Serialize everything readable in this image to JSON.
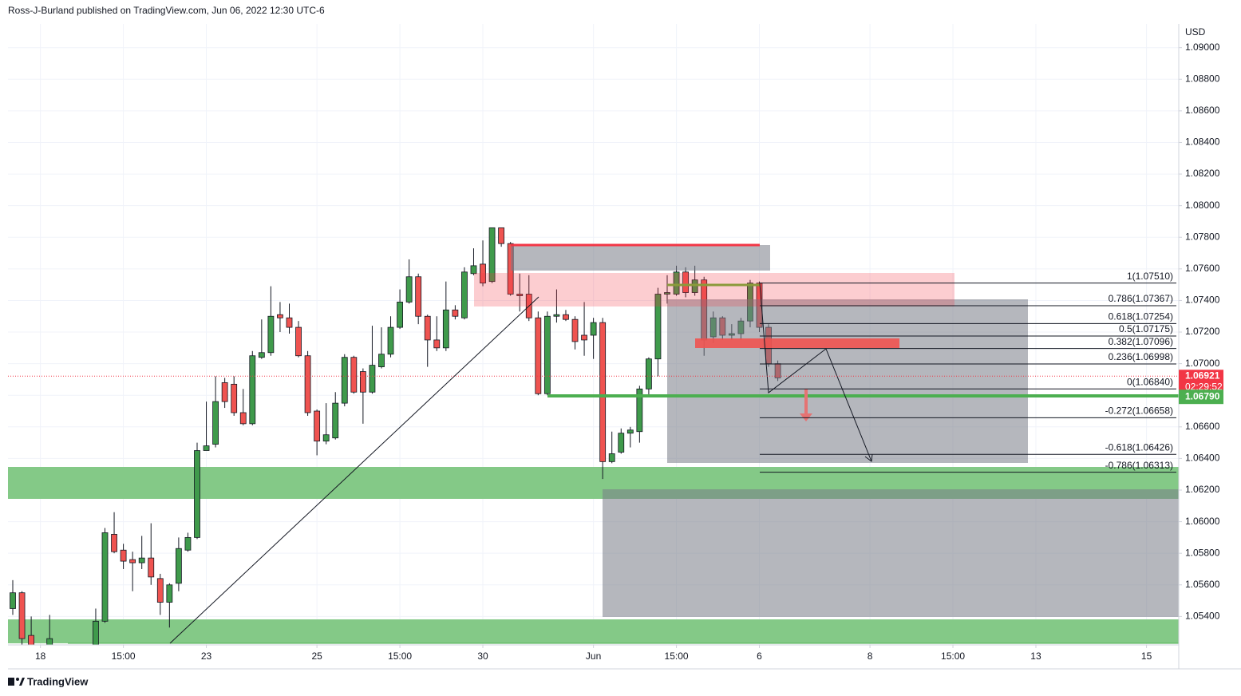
{
  "header": {
    "title": "Ross-J-Burland published on TradingView.com, Jun 06, 2022 12:30 UTC-6"
  },
  "footer": {
    "brand": "TradingView"
  },
  "chart_data": {
    "type": "candlestick",
    "currency": "USD",
    "up_color": "#3f9a4b",
    "down_color": "#ef5350",
    "grid": true,
    "ylim": [
      1.0522,
      1.0915
    ],
    "yticks": [
      {
        "value": 1.09,
        "label": "1.09000"
      },
      {
        "value": 1.088,
        "label": "1.08800"
      },
      {
        "value": 1.086,
        "label": "1.08600"
      },
      {
        "value": 1.084,
        "label": "1.08400"
      },
      {
        "value": 1.082,
        "label": "1.08200"
      },
      {
        "value": 1.08,
        "label": "1.08000"
      },
      {
        "value": 1.078,
        "label": "1.07800"
      },
      {
        "value": 1.076,
        "label": "1.07600"
      },
      {
        "value": 1.074,
        "label": "1.07400"
      },
      {
        "value": 1.072,
        "label": "1.07200"
      },
      {
        "value": 1.07,
        "label": "1.07000"
      },
      {
        "value": 1.068,
        "label": "1.06800"
      },
      {
        "value": 1.066,
        "label": "1.06600"
      },
      {
        "value": 1.064,
        "label": "1.06400"
      },
      {
        "value": 1.062,
        "label": "1.06200"
      },
      {
        "value": 1.06,
        "label": "1.06000"
      },
      {
        "value": 1.058,
        "label": "1.05800"
      },
      {
        "value": 1.056,
        "label": "1.05600"
      },
      {
        "value": 1.054,
        "label": "1.05400"
      }
    ],
    "xlim": [
      -0.52,
      126.5
    ],
    "xticks": [
      {
        "value": 3,
        "label": "18"
      },
      {
        "value": 12,
        "label": "15:00"
      },
      {
        "value": 21,
        "label": "23"
      },
      {
        "value": 33,
        "label": "25"
      },
      {
        "value": 42,
        "label": "15:00"
      },
      {
        "value": 51,
        "label": "30"
      },
      {
        "value": 63,
        "label": "Jun"
      },
      {
        "value": 72,
        "label": "15:00"
      },
      {
        "value": 81,
        "label": "6"
      },
      {
        "value": 93,
        "label": "8"
      },
      {
        "value": 102,
        "label": "15:00"
      },
      {
        "value": 111,
        "label": "13"
      },
      {
        "value": 123,
        "label": "15"
      }
    ],
    "candles": {
      "x": [
        0,
        1,
        2,
        4,
        9,
        10,
        11,
        12,
        13,
        14,
        15,
        16,
        17,
        18,
        19,
        20,
        21,
        22,
        23,
        24,
        25,
        26,
        27,
        28,
        29,
        30,
        31,
        32,
        33,
        34,
        35,
        36,
        37,
        38,
        39,
        40,
        41,
        42,
        43,
        44,
        45,
        46,
        47,
        48,
        49,
        50,
        51,
        52,
        53,
        54,
        55,
        56,
        57,
        58,
        59,
        60,
        61,
        62,
        63,
        64,
        65,
        66,
        67,
        68,
        69,
        70,
        71,
        72,
        73,
        74,
        75,
        76,
        77,
        78,
        79,
        80,
        81,
        82,
        83
      ],
      "open": [
        1.0545,
        1.0555,
        1.0528,
        1.0522,
        1.0522,
        1.0537,
        1.0592,
        1.0582,
        1.0576,
        1.0574,
        1.0577,
        1.0564,
        1.0549,
        1.0561,
        1.0582,
        1.059,
        1.0645,
        1.0649,
        1.0688,
        1.0687,
        1.0669,
        1.0662,
        1.0704,
        1.0707,
        1.0731,
        1.0729,
        1.0723,
        1.0705,
        1.067,
        1.0651,
        1.0653,
        1.0675,
        1.0704,
        1.0695,
        1.0682,
        1.0698,
        1.0706,
        1.0723,
        1.0739,
        1.0755,
        1.073,
        1.0715,
        1.071,
        1.0734,
        1.0729,
        1.0757,
        1.0763,
        1.0752,
        1.0786,
        1.0776,
        1.0744,
        1.0744,
        1.0729,
        1.0681,
        1.073,
        1.0731,
        1.0728,
        1.0718,
        1.0718,
        1.0726,
        1.0638,
        1.0644,
        1.0656,
        1.0657,
        1.0684,
        1.0703,
        1.0744,
        1.0744,
        1.0758,
        1.0745,
        1.0753,
        1.0717,
        1.0729,
        1.0718,
        1.0719,
        1.0727,
        1.0751,
        1.0723,
        1.07
      ],
      "high": [
        1.0563,
        1.0556,
        1.054,
        1.0541,
        1.0545,
        1.0596,
        1.0606,
        1.0586,
        1.0581,
        1.0591,
        1.0599,
        1.0567,
        1.0561,
        1.059,
        1.0593,
        1.065,
        1.0676,
        1.0692,
        1.0691,
        1.0692,
        1.0684,
        1.0708,
        1.0728,
        1.0749,
        1.0739,
        1.0738,
        1.0727,
        1.0708,
        1.0671,
        1.0675,
        1.0682,
        1.0706,
        1.0705,
        1.0697,
        1.0724,
        1.0723,
        1.073,
        1.0747,
        1.0766,
        1.0757,
        1.0731,
        1.073,
        1.0752,
        1.0737,
        1.0761,
        1.0773,
        1.0778,
        1.0786,
        1.0786,
        1.0777,
        1.0757,
        1.0756,
        1.0733,
        1.0733,
        1.0747,
        1.0734,
        1.073,
        1.0739,
        1.0729,
        1.0729,
        1.0657,
        1.0659,
        1.066,
        1.0686,
        1.0704,
        1.0748,
        1.0756,
        1.0762,
        1.0761,
        1.0762,
        1.0755,
        1.0733,
        1.073,
        1.0725,
        1.0729,
        1.0753,
        1.0752,
        1.0725,
        1.0702
      ],
      "low": [
        1.0541,
        1.0522,
        1.0522,
        1.0522,
        1.0522,
        1.0536,
        1.058,
        1.057,
        1.0556,
        1.057,
        1.056,
        1.0541,
        1.0533,
        1.0556,
        1.0581,
        1.0589,
        1.0645,
        1.0647,
        1.0672,
        1.0667,
        1.0661,
        1.0661,
        1.0703,
        1.0705,
        1.072,
        1.0719,
        1.0704,
        1.0667,
        1.0642,
        1.0649,
        1.0652,
        1.0673,
        1.0681,
        1.0662,
        1.0681,
        1.0697,
        1.0704,
        1.0722,
        1.0738,
        1.0725,
        1.0698,
        1.0708,
        1.0708,
        1.0728,
        1.0728,
        1.0756,
        1.0749,
        1.0751,
        1.0774,
        1.0743,
        1.0733,
        1.0727,
        1.068,
        1.068,
        1.0726,
        1.0727,
        1.0709,
        1.0705,
        1.0703,
        1.0627,
        1.0637,
        1.0643,
        1.0647,
        1.065,
        1.068,
        1.0692,
        1.0738,
        1.0743,
        1.0742,
        1.0743,
        1.0705,
        1.0713,
        1.0715,
        1.0715,
        1.0715,
        1.0723,
        1.072,
        1.0698,
        1.0689
      ],
      "close": [
        1.0555,
        1.0526,
        1.0522,
        1.0526,
        1.0537,
        1.0593,
        1.0581,
        1.0575,
        1.0574,
        1.0577,
        1.0565,
        1.0549,
        1.056,
        1.0583,
        1.059,
        1.0645,
        1.0648,
        1.0676,
        1.0676,
        1.0669,
        1.0662,
        1.0705,
        1.0707,
        1.073,
        1.0729,
        1.0723,
        1.0705,
        1.0669,
        1.0651,
        1.0655,
        1.0675,
        1.0704,
        1.0682,
        1.0682,
        1.0699,
        1.0706,
        1.0723,
        1.0739,
        1.0755,
        1.073,
        1.0715,
        1.071,
        1.0734,
        1.073,
        1.0758,
        1.0762,
        1.0751,
        1.0786,
        1.0776,
        1.0744,
        1.0743,
        1.0729,
        1.0681,
        1.073,
        1.0731,
        1.0728,
        1.0714,
        1.0715,
        1.0726,
        1.0638,
        1.0643,
        1.0656,
        1.0658,
        1.0684,
        1.0703,
        1.0744,
        1.0745,
        1.0758,
        1.0745,
        1.0753,
        1.0715,
        1.0729,
        1.0718,
        1.0719,
        1.0727,
        1.0751,
        1.0723,
        1.07,
        1.0691
      ]
    },
    "fib_levels": [
      {
        "value": 1.0751,
        "label": "1(1.07510)"
      },
      {
        "value": 1.07367,
        "label": "0.786(1.07367)"
      },
      {
        "value": 1.07254,
        "label": "0.618(1.07254)"
      },
      {
        "value": 1.07175,
        "label": "0.5(1.07175)"
      },
      {
        "value": 1.07096,
        "label": "0.382(1.07096)"
      },
      {
        "value": 1.06998,
        "label": "0.236(1.06998)"
      },
      {
        "value": 1.0684,
        "label": "0(1.06840)"
      },
      {
        "value": 1.06658,
        "label": "-0.272(1.06658)"
      },
      {
        "value": 1.06426,
        "label": "-0.618(1.06426)"
      },
      {
        "value": 1.06313,
        "label": "-0.786(1.06313)"
      }
    ],
    "price_tags": [
      {
        "value": 1.06921,
        "label": "1.06921",
        "countdown": "02:29:52",
        "color": "#f23645"
      },
      {
        "value": 1.0679,
        "label": "1.06790",
        "color": "#4caf50"
      }
    ]
  }
}
